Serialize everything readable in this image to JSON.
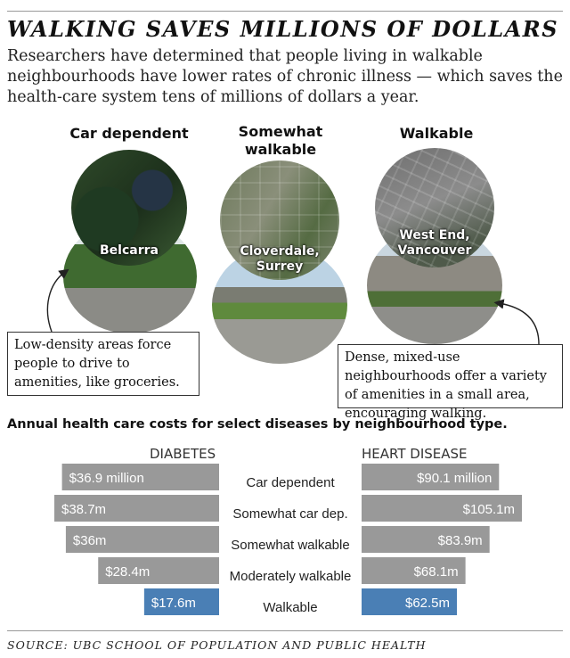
{
  "header": {
    "title": "WALKING SAVES MILLIONS OF DOLLARS",
    "subtitle": "Researchers have determined that people living in walkable neighbourhoods have lower rates of chronic illness — which saves the health-care system tens of millions of dollars a year."
  },
  "examples": [
    {
      "heading": "Car dependent",
      "place": "Belcarra"
    },
    {
      "heading": "Somewhat walkable",
      "place": "Cloverdale, Surrey"
    },
    {
      "heading": "Walkable",
      "place": "West End, Vancouver"
    }
  ],
  "callouts": {
    "left": "Low-density areas force people to drive to amenities, like groceries.",
    "right": "Dense, mixed-use neighbourhoods offer a variety of amenities in a small area, encouraging walking."
  },
  "chart_data": {
    "type": "bar",
    "title": "Annual health care costs for select diseases by neighbourhood type.",
    "categories": [
      "Car dependent",
      "Somewhat car dep.",
      "Somewhat walkable",
      "Moderately walkable",
      "Walkable"
    ],
    "series": [
      {
        "name": "DIABETES",
        "values": [
          36.9,
          38.7,
          36,
          28.4,
          17.6
        ],
        "labels": [
          "$36.9 million",
          "$38.7m",
          "$36m",
          "$28.4m",
          "$17.6m"
        ]
      },
      {
        "name": "HEART DISEASE",
        "values": [
          90.1,
          105.1,
          83.9,
          68.1,
          62.5
        ],
        "labels": [
          "$90.1 million",
          "$105.1m",
          "$83.9m",
          "$68.1m",
          "$62.5m"
        ]
      }
    ],
    "highlight_category": "Walkable",
    "colors": {
      "bar": "#999999",
      "highlight": "#4a7fb5",
      "label": "#ffffff",
      "category": "#222222"
    }
  },
  "footer": {
    "source": "SOURCE: UBC SCHOOL OF POPULATION AND PUBLIC HEALTH"
  }
}
